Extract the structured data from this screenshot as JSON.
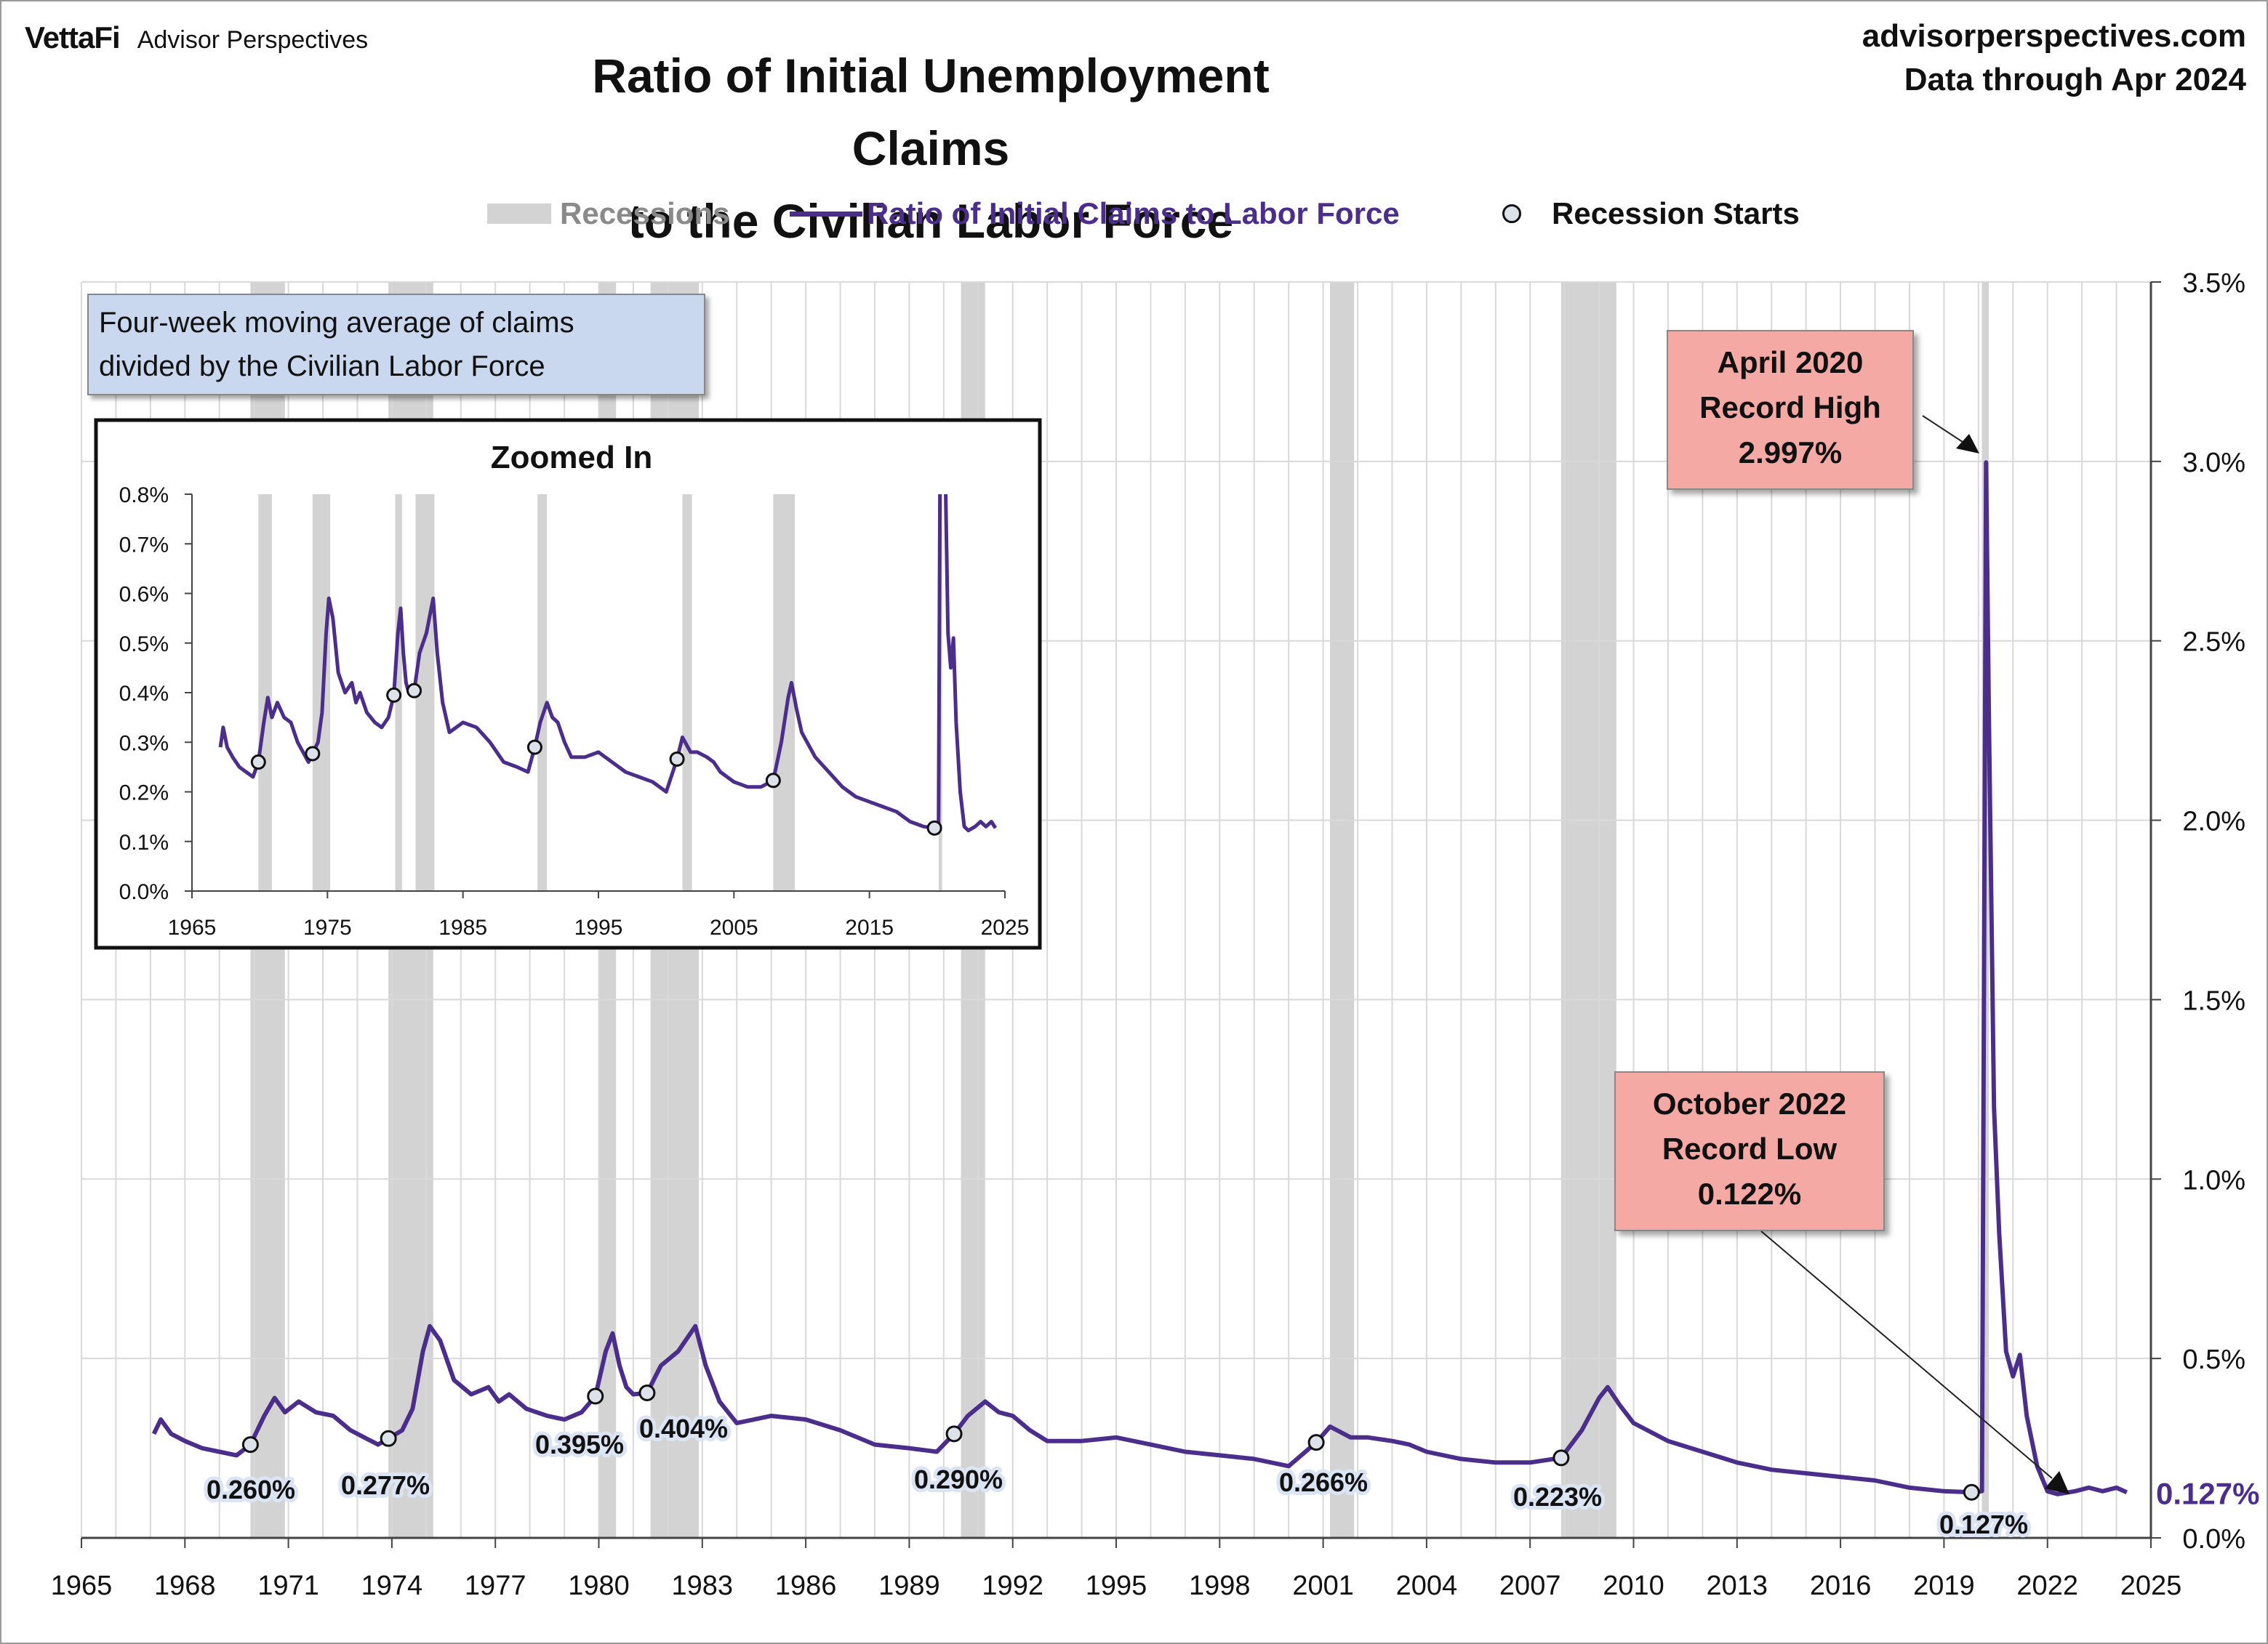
{
  "header": {
    "brand_main": "VettaFi",
    "brand_sub": "Advisor Perspectives",
    "site": "advisorperspectives.com",
    "data_through": "Data through Apr 2024",
    "title_line1": "Ratio of Initial Unemployment Claims",
    "title_line2": "to the Civilian Labor Force"
  },
  "legend": {
    "recessions": "Recessions",
    "ratio": "Ratio of Initial Claims to Labor Force",
    "starts": "Recession Starts"
  },
  "note": {
    "line1": "Four-week moving average of claims",
    "line2": "divided by the Civilian Labor Force"
  },
  "callouts": {
    "high": {
      "line1": "April 2020",
      "line2": "Record High",
      "line3": "2.997%"
    },
    "low": {
      "line1": "October 2022",
      "line2": "Record Low",
      "line3": "0.122%"
    }
  },
  "last_value_label": "0.127%",
  "colors": {
    "line": "#4b2d8c",
    "recession": "#d3d3d3",
    "grid": "#d9d9d9",
    "callout": "#f4a9a4",
    "note": "#c9d8ee"
  },
  "chart_data": [
    {
      "type": "line",
      "title": "Ratio of Initial Unemployment Claims to the Civilian Labor Force",
      "ylim": [
        0,
        3.5
      ],
      "xlim": [
        1965,
        2025
      ],
      "y_ticks": [
        "0.0%",
        "0.5%",
        "1.0%",
        "1.5%",
        "2.0%",
        "2.5%",
        "3.0%",
        "3.5%"
      ],
      "x_ticks": [
        "1965",
        "1968",
        "1971",
        "1974",
        "1977",
        "1980",
        "1983",
        "1986",
        "1989",
        "1992",
        "1995",
        "1998",
        "2001",
        "2004",
        "2007",
        "2010",
        "2013",
        "2016",
        "2019",
        "2022",
        "2025"
      ],
      "grid": true,
      "legend": "top-center",
      "recessions": [
        [
          1969.9,
          1970.9
        ],
        [
          1973.9,
          1975.2
        ],
        [
          1980.0,
          1980.5
        ],
        [
          1981.5,
          1982.9
        ],
        [
          1990.5,
          1991.2
        ],
        [
          2001.2,
          2001.9
        ],
        [
          2007.9,
          2009.5
        ],
        [
          2020.1,
          2020.3
        ]
      ],
      "series": [
        {
          "name": "Ratio of Initial Claims to Labor Force",
          "x": [
            1967.1,
            1967.3,
            1967.6,
            1968.0,
            1968.5,
            1969.0,
            1969.5,
            1969.9,
            1970.3,
            1970.6,
            1970.9,
            1971.3,
            1971.8,
            1972.3,
            1972.8,
            1973.2,
            1973.6,
            1973.9,
            1974.3,
            1974.6,
            1974.9,
            1975.1,
            1975.4,
            1975.8,
            1976.3,
            1976.8,
            1977.1,
            1977.4,
            1977.9,
            1978.5,
            1979.0,
            1979.5,
            1979.9,
            1980.2,
            1980.4,
            1980.6,
            1980.8,
            1981.0,
            1981.4,
            1981.8,
            1982.3,
            1982.8,
            1983.1,
            1983.5,
            1984.0,
            1984.5,
            1985.0,
            1986.0,
            1987.0,
            1988.0,
            1989.0,
            1989.8,
            1990.3,
            1990.7,
            1991.2,
            1991.6,
            1992.0,
            1992.5,
            1993.0,
            1994.0,
            1995.0,
            1996.0,
            1997.0,
            1998.0,
            1999.0,
            2000.0,
            2000.8,
            2001.2,
            2001.8,
            2002.3,
            2003.0,
            2003.5,
            2004.0,
            2005.0,
            2006.0,
            2007.0,
            2007.9,
            2008.5,
            2009.0,
            2009.25,
            2009.6,
            2010.0,
            2011.0,
            2012.0,
            2013.0,
            2014.0,
            2015.0,
            2016.0,
            2017.0,
            2018.0,
            2019.0,
            2019.8,
            2020.1,
            2020.22,
            2020.3,
            2020.45,
            2020.6,
            2020.8,
            2021.0,
            2021.2,
            2021.4,
            2021.7,
            2022.0,
            2022.3,
            2022.8,
            2023.2,
            2023.6,
            2024.0,
            2024.3
          ],
          "values": [
            0.29,
            0.33,
            0.29,
            0.27,
            0.25,
            0.24,
            0.23,
            0.26,
            0.34,
            0.39,
            0.35,
            0.38,
            0.35,
            0.34,
            0.3,
            0.28,
            0.26,
            0.277,
            0.3,
            0.36,
            0.52,
            0.59,
            0.55,
            0.44,
            0.4,
            0.42,
            0.38,
            0.4,
            0.36,
            0.34,
            0.33,
            0.35,
            0.395,
            0.52,
            0.57,
            0.48,
            0.42,
            0.4,
            0.404,
            0.48,
            0.52,
            0.59,
            0.48,
            0.38,
            0.32,
            0.33,
            0.34,
            0.33,
            0.3,
            0.26,
            0.25,
            0.24,
            0.29,
            0.34,
            0.38,
            0.35,
            0.34,
            0.3,
            0.27,
            0.27,
            0.28,
            0.26,
            0.24,
            0.23,
            0.22,
            0.2,
            0.266,
            0.31,
            0.28,
            0.28,
            0.27,
            0.26,
            0.24,
            0.22,
            0.21,
            0.21,
            0.223,
            0.3,
            0.39,
            0.42,
            0.37,
            0.32,
            0.27,
            0.24,
            0.21,
            0.19,
            0.18,
            0.17,
            0.16,
            0.14,
            0.13,
            0.127,
            0.13,
            2.997,
            2.3,
            1.2,
            0.85,
            0.52,
            0.45,
            0.51,
            0.34,
            0.2,
            0.13,
            0.122,
            0.13,
            0.14,
            0.13,
            0.14,
            0.127
          ]
        }
      ],
      "recession_start_markers": [
        {
          "x": 1969.9,
          "value": 0.26,
          "label": "0.260%"
        },
        {
          "x": 1973.9,
          "value": 0.277,
          "label": "0.277%"
        },
        {
          "x": 1979.9,
          "value": 0.395,
          "label": "0.395%"
        },
        {
          "x": 1981.4,
          "value": 0.404,
          "label": "0.404%"
        },
        {
          "x": 1990.3,
          "value": 0.29,
          "label": "0.290%"
        },
        {
          "x": 2000.8,
          "value": 0.266,
          "label": "0.266%"
        },
        {
          "x": 2007.9,
          "value": 0.223,
          "label": "0.223%"
        },
        {
          "x": 2019.8,
          "value": 0.127,
          "label": "0.127%"
        }
      ]
    },
    {
      "type": "line",
      "title": "Zoomed In",
      "ylim": [
        0,
        0.8
      ],
      "xlim": [
        1965,
        2025
      ],
      "y_ticks": [
        "0.0%",
        "0.1%",
        "0.2%",
        "0.3%",
        "0.4%",
        "0.5%",
        "0.6%",
        "0.7%",
        "0.8%"
      ],
      "x_ticks": [
        "1965",
        "1975",
        "1985",
        "1995",
        "2005",
        "2015",
        "2025"
      ],
      "grid": false
    }
  ]
}
